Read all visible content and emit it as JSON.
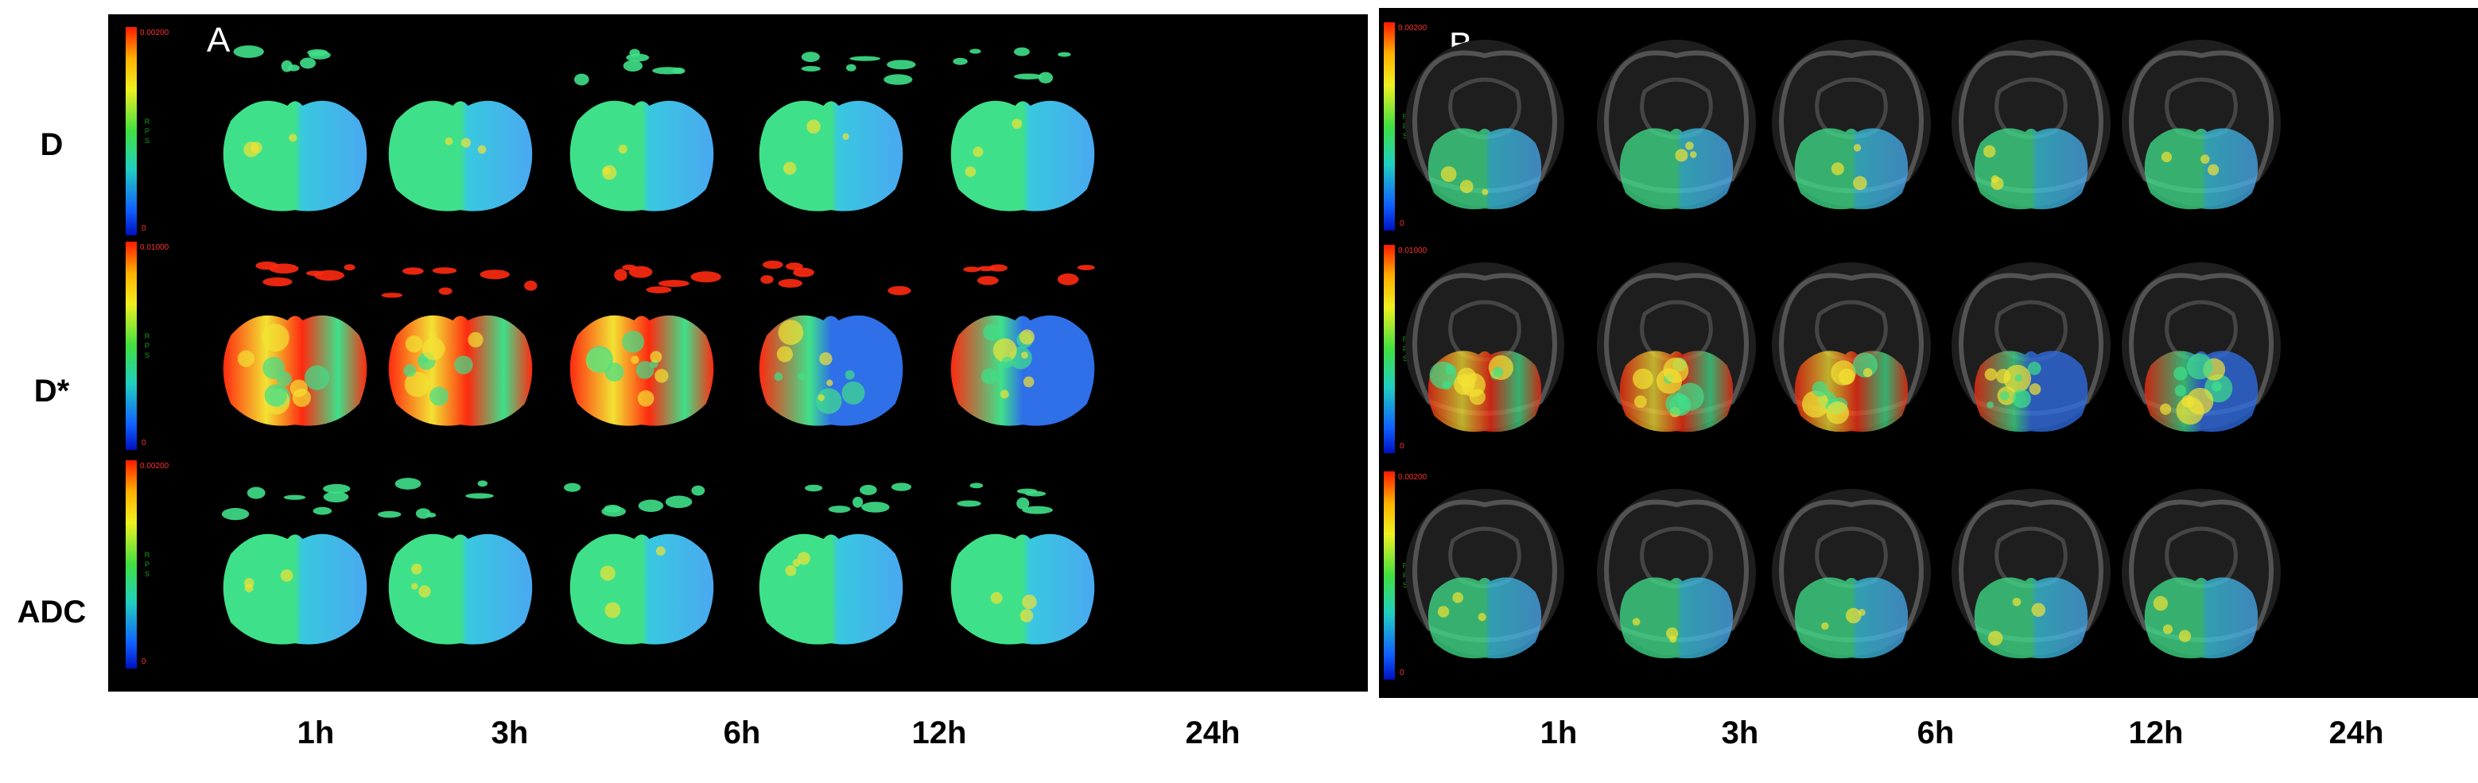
{
  "panels": {
    "a": {
      "letter": "A"
    },
    "b": {
      "letter": "B"
    }
  },
  "rows": [
    {
      "label": "D",
      "colorbar_max": "0.00200",
      "colorbar_min": "0"
    },
    {
      "label": "D*",
      "colorbar_max": "0.01000",
      "colorbar_min": "0"
    },
    {
      "label": "ADC",
      "colorbar_max": "0.00200",
      "colorbar_min": "0"
    }
  ],
  "columns": [
    "1h",
    "3h",
    "6h",
    "12h",
    "24h"
  ],
  "colorbar_mid_text": "RPS",
  "colors": {
    "background": "#000000",
    "map_green": "#3fe08a",
    "map_cyan": "#38c8e0",
    "map_blue": "#2f6fe8",
    "map_red": "#ff2a10",
    "map_yellow": "#f2e233"
  }
}
